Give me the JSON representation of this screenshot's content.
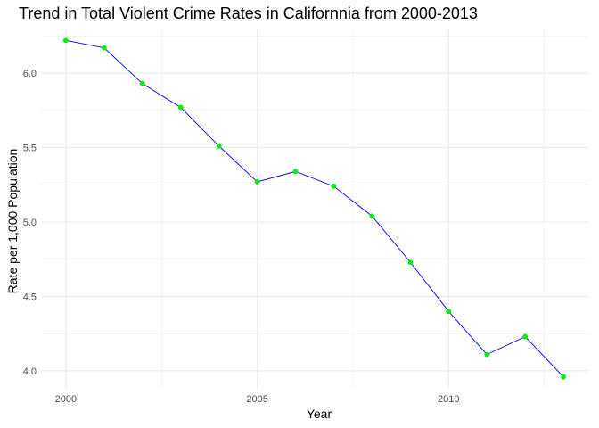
{
  "chart_data": {
    "type": "line",
    "title": "Trend in Total Violent Crime Rates in Californnia from 2000-2013",
    "xlabel": "Year",
    "ylabel": "Rate per 1,000 Population",
    "x": [
      2000,
      2001,
      2002,
      2003,
      2004,
      2005,
      2006,
      2007,
      2008,
      2009,
      2010,
      2011,
      2012,
      2013
    ],
    "series": [
      {
        "values": [
          6.22,
          6.17,
          5.93,
          5.77,
          5.51,
          5.27,
          5.34,
          5.24,
          5.04,
          4.73,
          4.4,
          4.11,
          4.23,
          3.96
        ]
      }
    ],
    "xlim": [
      1999.35,
      2013.65
    ],
    "ylim": [
      3.88,
      6.3
    ],
    "x_ticks": [
      2000,
      2005,
      2010
    ],
    "x_tick_labels": [
      "2000",
      "2005",
      "2010"
    ],
    "y_ticks": [
      4.0,
      4.5,
      5.0,
      5.5,
      6.0
    ],
    "y_tick_labels": [
      "4.0",
      "4.5",
      "5.0",
      "5.5",
      "6.0"
    ],
    "grid": true,
    "line_color": "#0000ff",
    "point_color": "#00ee00",
    "grid_color": "#ebebeb"
  }
}
